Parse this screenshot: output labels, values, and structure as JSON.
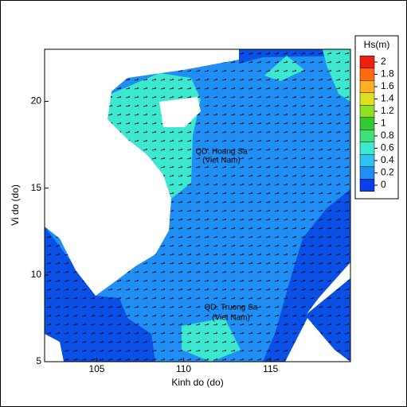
{
  "chart_data": {
    "type": "contour-map",
    "xlabel": "Kinh do (do)",
    "ylabel": "Vi do (do)",
    "xlim": [
      102,
      119.6
    ],
    "ylim": [
      5,
      23
    ],
    "xticks": [
      105,
      110,
      115
    ],
    "yticks": [
      5,
      10,
      15,
      20
    ],
    "annotations": [
      "QD. Hoang Sa",
      "(Viet Nam)",
      "QD. Truong Sa",
      "(Viet Nam)"
    ],
    "colorbar": {
      "title": "Hs(m)",
      "ticks": [
        0,
        0.2,
        0.4,
        0.6,
        0.8,
        1,
        1.2,
        1.4,
        1.6,
        1.8,
        2
      ],
      "colors": [
        "#0a3ee6",
        "#1f8ff5",
        "#2ec3f2",
        "#3ce8cf",
        "#3fe07a",
        "#34c830",
        "#8ee020",
        "#e0e020",
        "#ffb020",
        "#ff6a10",
        "#f02010"
      ]
    }
  }
}
